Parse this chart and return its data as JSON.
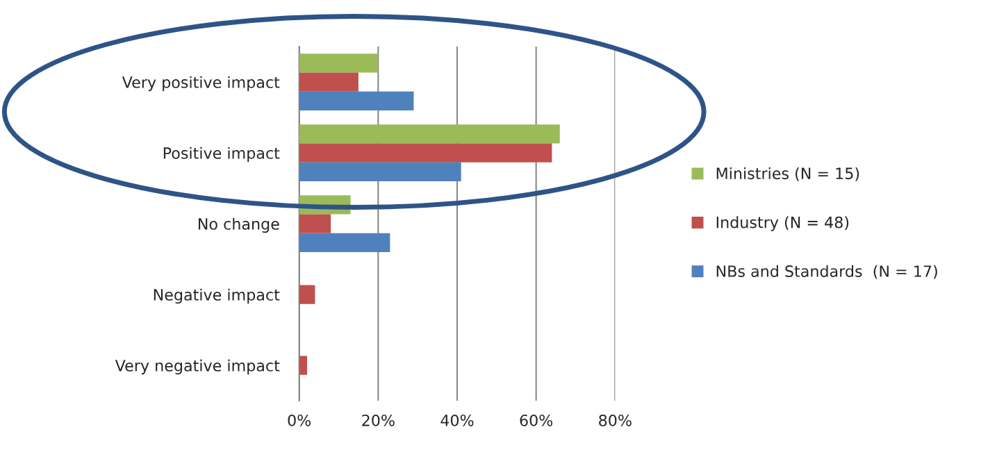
{
  "chart_data": {
    "type": "bar",
    "orientation": "horizontal",
    "categories": [
      "Very positive impact",
      "Positive impact",
      "No change",
      "Negative impact",
      "Very negative impact"
    ],
    "series": [
      {
        "name": "Ministries (N = 15)",
        "color": "#9bbb59",
        "values": [
          20,
          66,
          13,
          null,
          null
        ]
      },
      {
        "name": "Industry (N = 48)",
        "color": "#c0504d",
        "values": [
          15,
          64,
          8,
          4,
          2
        ]
      },
      {
        "name": "NBs and Standards  (N = 17)",
        "color": "#4f81bd",
        "values": [
          29,
          41,
          23,
          null,
          null
        ]
      }
    ],
    "xlim": [
      0,
      80
    ],
    "xticks": [
      {
        "value": 0,
        "label": "0%"
      },
      {
        "value": 20,
        "label": "20%"
      },
      {
        "value": 40,
        "label": "40%"
      },
      {
        "value": 60,
        "label": "60%"
      },
      {
        "value": 80,
        "label": "80%"
      }
    ],
    "grid": "x",
    "legend": "right"
  }
}
